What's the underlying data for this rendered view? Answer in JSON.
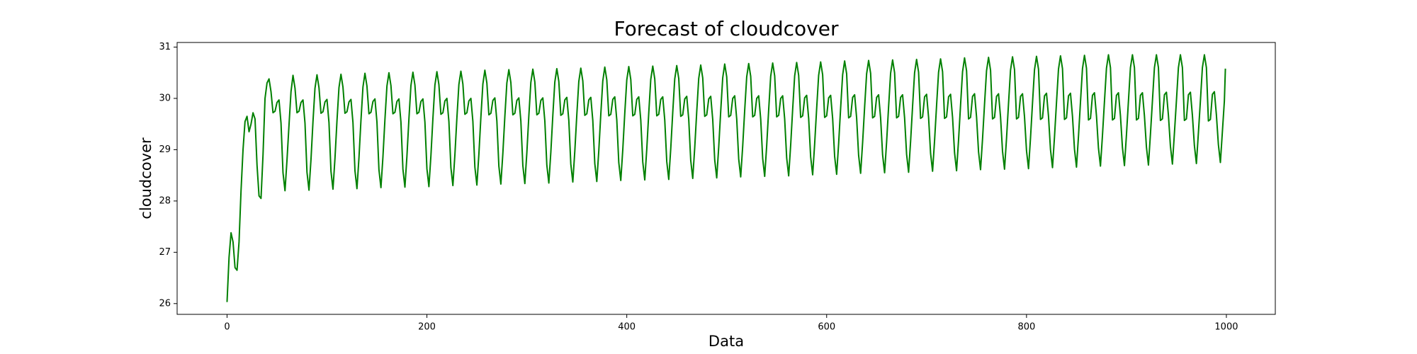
{
  "chart_data": {
    "type": "line",
    "title": "Forecast of cloudcover",
    "xlabel": "Data",
    "ylabel": "cloudcover",
    "xlim": [
      -49.95,
      1048.95
    ],
    "ylim": [
      25.79,
      31.09
    ],
    "xticks": [
      0,
      200,
      400,
      600,
      800,
      1000
    ],
    "yticks": [
      26,
      27,
      28,
      29,
      30,
      31
    ],
    "grid": false,
    "x": [
      0,
      2,
      4,
      6,
      8,
      10,
      12,
      14,
      16,
      18,
      20,
      22,
      24,
      26,
      28,
      30,
      32,
      34,
      36,
      38,
      40,
      42,
      44,
      46,
      48,
      50,
      52,
      54,
      56,
      58,
      60,
      62,
      64,
      66,
      68,
      70,
      72,
      74,
      76,
      78,
      80,
      82,
      84,
      86,
      88,
      90,
      92,
      94,
      96,
      98,
      100,
      102,
      104,
      106,
      108,
      110,
      112,
      114,
      116,
      118,
      120,
      122,
      124,
      126,
      128,
      130,
      132,
      134,
      136,
      138,
      140,
      142,
      144,
      146,
      148,
      150,
      152,
      154,
      156,
      158,
      160,
      162,
      164,
      166,
      168,
      170,
      172,
      174,
      176,
      178,
      180,
      182,
      184,
      186,
      188,
      190,
      192,
      194,
      196,
      198,
      200,
      202,
      204,
      206,
      208,
      210,
      212,
      214,
      216,
      218,
      220,
      222,
      224,
      226,
      228,
      230,
      232,
      234,
      236,
      238,
      240,
      242,
      244,
      246,
      248,
      250,
      252,
      254,
      256,
      258,
      260,
      262,
      264,
      266,
      268,
      270,
      272,
      274,
      276,
      278,
      280,
      282,
      284,
      286,
      288,
      290,
      292,
      294,
      296,
      298,
      300,
      302,
      304,
      306,
      308,
      310,
      312,
      314,
      316,
      318,
      320,
      322,
      324,
      326,
      328,
      330,
      332,
      334,
      336,
      338,
      340,
      342,
      344,
      346,
      348,
      350,
      352,
      354,
      356,
      358,
      360,
      362,
      364,
      366,
      368,
      370,
      372,
      374,
      376,
      378,
      380,
      382,
      384,
      386,
      388,
      390,
      392,
      394,
      396,
      398,
      400,
      402,
      404,
      406,
      408,
      410,
      412,
      414,
      416,
      418,
      420,
      422,
      424,
      426,
      428,
      430,
      432,
      434,
      436,
      438,
      440,
      442,
      444,
      446,
      448,
      450,
      452,
      454,
      456,
      458,
      460,
      462,
      464,
      466,
      468,
      470,
      472,
      474,
      476,
      478,
      480,
      482,
      484,
      486,
      488,
      490,
      492,
      494,
      496,
      498,
      500,
      502,
      504,
      506,
      508,
      510,
      512,
      514,
      516,
      518,
      520,
      522,
      524,
      526,
      528,
      530,
      532,
      534,
      536,
      538,
      540,
      542,
      544,
      546,
      548,
      550,
      552,
      554,
      556,
      558,
      560,
      562,
      564,
      566,
      568,
      570,
      572,
      574,
      576,
      578,
      580,
      582,
      584,
      586,
      588,
      590,
      592,
      594,
      596,
      598,
      600,
      602,
      604,
      606,
      608,
      610,
      612,
      614,
      616,
      618,
      620,
      622,
      624,
      626,
      628,
      630,
      632,
      634,
      636,
      638,
      640,
      642,
      644,
      646,
      648,
      650,
      652,
      654,
      656,
      658,
      660,
      662,
      664,
      666,
      668,
      670,
      672,
      674,
      676,
      678,
      680,
      682,
      684,
      686,
      688,
      690,
      692,
      694,
      696,
      698,
      700,
      702,
      704,
      706,
      708,
      710,
      712,
      714,
      716,
      718,
      720,
      722,
      724,
      726,
      728,
      730,
      732,
      734,
      736,
      738,
      740,
      742,
      744,
      746,
      748,
      750,
      752,
      754,
      756,
      758,
      760,
      762,
      764,
      766,
      768,
      770,
      772,
      774,
      776,
      778,
      780,
      782,
      784,
      786,
      788,
      790,
      792,
      794,
      796,
      798,
      800,
      802,
      804,
      806,
      808,
      810,
      812,
      814,
      816,
      818,
      820,
      822,
      824,
      826,
      828,
      830,
      832,
      834,
      836,
      838,
      840,
      842,
      844,
      846,
      848,
      850,
      852,
      854,
      856,
      858,
      860,
      862,
      864,
      866,
      868,
      870,
      872,
      874,
      876,
      878,
      880,
      882,
      884,
      886,
      888,
      890,
      892,
      894,
      896,
      898,
      900,
      902,
      904,
      906,
      908,
      910,
      912,
      914,
      916,
      918,
      920,
      922,
      924,
      926,
      928,
      930,
      932,
      934,
      936,
      938,
      940,
      942,
      944,
      946,
      948,
      950,
      952,
      954,
      956,
      958,
      960,
      962,
      964,
      966,
      968,
      970,
      972,
      974,
      976,
      978,
      980,
      982,
      984,
      986,
      988,
      990,
      992,
      994,
      996,
      998,
      999
    ],
    "series": [
      {
        "name": "cloudcover",
        "color": "#008000",
        "values": [
          26.03,
          26.9,
          27.38,
          27.2,
          26.7,
          26.65,
          27.2,
          28.2,
          29.0,
          29.55,
          29.65,
          29.35,
          29.5,
          29.72,
          29.6,
          28.7,
          28.1,
          28.05,
          28.9,
          30.0,
          30.3,
          30.38,
          30.13,
          29.72,
          29.75,
          29.92,
          29.97,
          29.52,
          28.55,
          28.2,
          28.8,
          29.48,
          30.13,
          30.45,
          30.2,
          29.72,
          29.75,
          29.92,
          29.97,
          29.52,
          28.56,
          28.21,
          28.81,
          29.55,
          30.2,
          30.46,
          30.21,
          29.71,
          29.74,
          29.93,
          29.98,
          29.53,
          28.58,
          28.23,
          28.83,
          29.56,
          30.21,
          30.47,
          30.22,
          29.71,
          29.74,
          29.93,
          29.98,
          29.53,
          28.59,
          28.24,
          28.84,
          29.57,
          30.22,
          30.49,
          30.24,
          29.7,
          29.73,
          29.94,
          29.99,
          29.54,
          28.61,
          28.26,
          28.86,
          29.59,
          30.24,
          30.5,
          30.25,
          29.7,
          29.73,
          29.94,
          29.99,
          29.54,
          28.62,
          28.27,
          28.87,
          29.6,
          30.25,
          30.51,
          30.26,
          29.7,
          29.73,
          29.94,
          29.99,
          29.54,
          28.63,
          28.28,
          28.88,
          29.61,
          30.26,
          30.52,
          30.27,
          29.69,
          29.72,
          29.95,
          30.0,
          29.55,
          28.65,
          28.3,
          28.9,
          29.62,
          30.27,
          30.53,
          30.28,
          29.69,
          29.72,
          29.95,
          30.0,
          29.55,
          28.66,
          28.31,
          28.91,
          29.63,
          30.28,
          30.55,
          30.3,
          29.68,
          29.71,
          29.96,
          30.01,
          29.56,
          28.68,
          28.33,
          28.93,
          29.65,
          30.3,
          30.56,
          30.31,
          29.68,
          29.71,
          29.96,
          30.01,
          29.56,
          28.69,
          28.34,
          28.94,
          29.66,
          30.31,
          30.57,
          30.32,
          29.68,
          29.71,
          29.96,
          30.01,
          29.56,
          28.7,
          28.35,
          28.95,
          29.67,
          30.32,
          30.58,
          30.33,
          29.67,
          29.7,
          29.97,
          30.02,
          29.57,
          28.72,
          28.37,
          28.97,
          29.68,
          30.33,
          30.59,
          30.34,
          29.67,
          29.7,
          29.97,
          30.02,
          29.57,
          28.73,
          28.38,
          28.98,
          29.69,
          30.34,
          30.61,
          30.36,
          29.66,
          29.69,
          29.98,
          30.03,
          29.58,
          28.75,
          28.4,
          29.0,
          29.71,
          30.36,
          30.62,
          30.37,
          29.66,
          29.69,
          29.98,
          30.03,
          29.58,
          28.76,
          28.41,
          29.01,
          29.72,
          30.37,
          30.63,
          30.38,
          29.66,
          29.69,
          29.98,
          30.03,
          29.58,
          28.77,
          28.42,
          29.02,
          29.73,
          30.38,
          30.64,
          30.39,
          29.65,
          29.68,
          29.99,
          30.04,
          29.59,
          28.79,
          28.44,
          29.04,
          29.74,
          30.39,
          30.65,
          30.4,
          29.65,
          29.68,
          29.99,
          30.04,
          29.59,
          28.8,
          28.45,
          29.05,
          29.75,
          30.4,
          30.67,
          30.42,
          29.64,
          29.67,
          30.0,
          30.05,
          29.6,
          28.82,
          28.47,
          29.07,
          29.77,
          30.42,
          30.68,
          30.43,
          29.64,
          29.67,
          30.0,
          30.05,
          29.6,
          28.83,
          28.48,
          29.08,
          29.78,
          30.43,
          30.69,
          30.44,
          29.64,
          29.67,
          30.0,
          30.05,
          29.6,
          28.84,
          28.49,
          29.09,
          29.79,
          30.44,
          30.7,
          30.45,
          29.63,
          29.66,
          30.01,
          30.06,
          29.61,
          28.86,
          28.51,
          29.11,
          29.8,
          30.45,
          30.71,
          30.46,
          29.63,
          29.66,
          30.01,
          30.06,
          29.61,
          28.87,
          28.52,
          29.12,
          29.81,
          30.46,
          30.73,
          30.48,
          29.62,
          29.65,
          30.02,
          30.07,
          29.62,
          28.89,
          28.54,
          29.14,
          29.83,
          30.48,
          30.74,
          30.49,
          29.62,
          29.65,
          30.02,
          30.07,
          29.62,
          28.9,
          28.55,
          29.15,
          29.84,
          30.49,
          30.75,
          30.5,
          29.62,
          29.65,
          30.02,
          30.07,
          29.62,
          28.91,
          28.56,
          29.16,
          29.85,
          30.5,
          30.76,
          30.51,
          29.61,
          29.64,
          30.03,
          30.08,
          29.63,
          28.93,
          28.58,
          29.18,
          29.86,
          30.51,
          30.77,
          30.52,
          29.61,
          29.64,
          30.03,
          30.08,
          29.63,
          28.94,
          28.59,
          29.19,
          29.87,
          30.52,
          30.79,
          30.54,
          29.6,
          29.63,
          30.04,
          30.09,
          29.64,
          28.96,
          28.61,
          29.21,
          29.89,
          30.54,
          30.8,
          30.55,
          29.6,
          29.63,
          30.04,
          30.09,
          29.64,
          28.97,
          28.62,
          29.22,
          29.9,
          30.55,
          30.81,
          30.56,
          29.6,
          29.63,
          30.04,
          30.09,
          29.64,
          28.98,
          28.63,
          29.23,
          29.91,
          30.56,
          30.82,
          30.57,
          29.59,
          29.62,
          30.05,
          30.1,
          29.65,
          29.0,
          28.65,
          29.25,
          29.92,
          30.57,
          30.83,
          30.58,
          29.59,
          29.62,
          30.05,
          30.1,
          29.65,
          29.01,
          28.66,
          29.26,
          29.93,
          30.58,
          30.84,
          30.59,
          29.58,
          29.61,
          30.06,
          30.11,
          29.66,
          29.03,
          28.68,
          29.28,
          29.94,
          30.59,
          30.85,
          30.6,
          29.58,
          29.61,
          30.06,
          30.11,
          29.66,
          29.04,
          28.69,
          29.29,
          29.95,
          30.6,
          30.85,
          30.6,
          29.58,
          29.61,
          30.06,
          30.11,
          29.66,
          29.05,
          28.7,
          29.3,
          29.95,
          30.6,
          30.85,
          30.6,
          29.57,
          29.6,
          30.07,
          30.12,
          29.67,
          29.07,
          28.72,
          29.32,
          29.95,
          30.6,
          30.85,
          30.6,
          29.57,
          29.6,
          30.07,
          30.12,
          29.67,
          29.08,
          28.73,
          29.33,
          29.95,
          30.6,
          30.85,
          30.6,
          29.56,
          29.59,
          30.08,
          30.13,
          29.68,
          29.1,
          28.75,
          29.35,
          29.95,
          30.58
        ]
      }
    ]
  }
}
